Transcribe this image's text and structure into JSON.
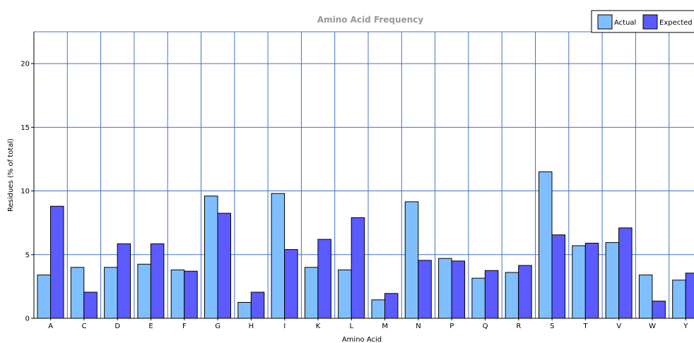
{
  "chart_data": {
    "type": "bar",
    "title": "Amino Acid Frequency",
    "xlabel": "Amino Acid",
    "ylabel": "Residues (% of total)",
    "ylim": [
      0,
      22.5
    ],
    "yticks": [
      0,
      5,
      10,
      15,
      20
    ],
    "grid": true,
    "legend_position": "top-right",
    "categories": [
      "A",
      "C",
      "D",
      "E",
      "F",
      "G",
      "H",
      "I",
      "K",
      "L",
      "M",
      "N",
      "P",
      "Q",
      "R",
      "S",
      "T",
      "V",
      "W",
      "Y"
    ],
    "series": [
      {
        "name": "Actual",
        "color": "#80bfff",
        "values": [
          3.4,
          4.0,
          4.0,
          4.25,
          3.8,
          9.6,
          1.25,
          9.8,
          4.0,
          3.8,
          1.45,
          9.15,
          4.7,
          3.15,
          3.6,
          11.5,
          5.7,
          5.95,
          3.4,
          3.0
        ]
      },
      {
        "name": "Expected",
        "color": "#5b5bff",
        "values": [
          8.8,
          2.05,
          5.85,
          5.85,
          3.7,
          8.25,
          2.05,
          5.4,
          6.2,
          7.9,
          1.95,
          4.55,
          4.5,
          3.75,
          4.15,
          6.55,
          5.9,
          7.1,
          1.35,
          3.55
        ]
      }
    ]
  }
}
